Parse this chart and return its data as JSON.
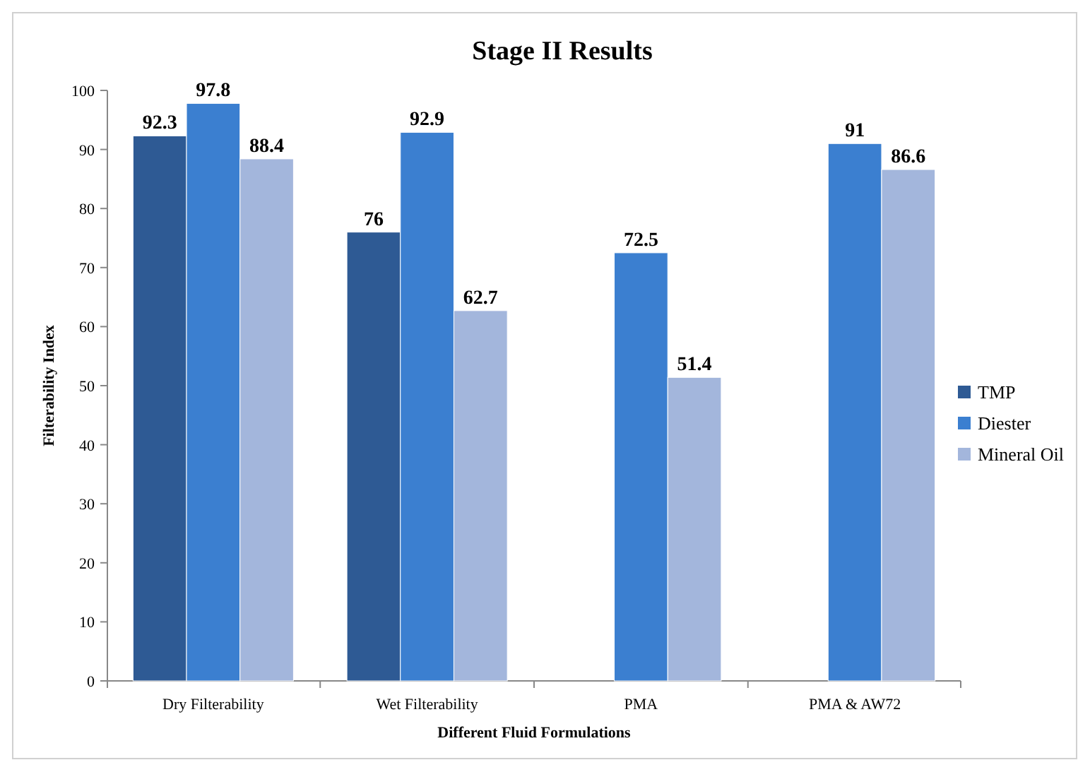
{
  "chart_data": {
    "type": "bar",
    "title": "Stage II Results",
    "xlabel": "Different Fluid Formulations",
    "ylabel": "Filterability Index",
    "categories": [
      "Dry Filterability",
      "Wet Filterability",
      "PMA",
      "PMA & AW72"
    ],
    "series": [
      {
        "name": "TMP",
        "color": "#2e5a94",
        "values": [
          92.3,
          76,
          null,
          null
        ]
      },
      {
        "name": "Diester",
        "color": "#3b7fd0",
        "values": [
          97.8,
          92.9,
          72.5,
          91
        ]
      },
      {
        "name": "Mineral Oil",
        "color": "#a3b6dc",
        "values": [
          88.4,
          62.7,
          51.4,
          86.6
        ]
      }
    ],
    "ylim": [
      0,
      100
    ],
    "yticks": [
      0,
      10,
      20,
      30,
      40,
      50,
      60,
      70,
      80,
      90,
      100
    ],
    "grid": false,
    "legend": "right",
    "data_labels": true
  }
}
